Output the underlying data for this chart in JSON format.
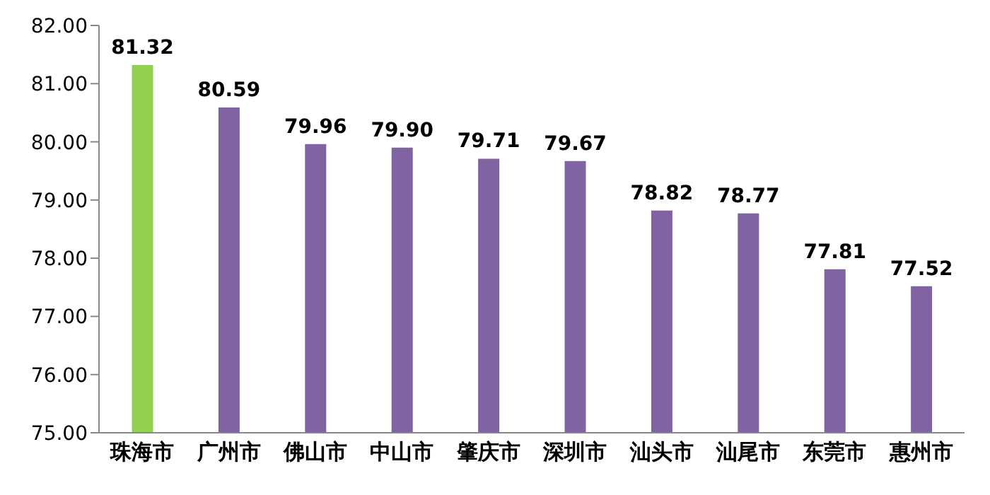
{
  "chart_data": {
    "type": "bar",
    "categories": [
      "珠海市",
      "广州市",
      "佛山市",
      "中山市",
      "肇庆市",
      "深圳市",
      "汕头市",
      "汕尾市",
      "东莞市",
      "惠州市"
    ],
    "values": [
      81.32,
      80.59,
      79.96,
      79.9,
      79.71,
      79.67,
      78.82,
      78.77,
      77.81,
      77.52
    ],
    "colors": [
      "#92d050",
      "#8064a2",
      "#8064a2",
      "#8064a2",
      "#8064a2",
      "#8064a2",
      "#8064a2",
      "#8064a2",
      "#8064a2",
      "#8064a2"
    ],
    "value_labels": [
      "81.32",
      "80.59",
      "79.96",
      "79.90",
      "79.71",
      "79.67",
      "78.82",
      "78.77",
      "77.81",
      "77.52"
    ],
    "ylim": [
      75,
      82
    ],
    "yticks": [
      {
        "value": 75,
        "label": "75.00"
      },
      {
        "value": 76,
        "label": "76.00"
      },
      {
        "value": 77,
        "label": "77.00"
      },
      {
        "value": 78,
        "label": "78.00"
      },
      {
        "value": 79,
        "label": "79.00"
      },
      {
        "value": 80,
        "label": "80.00"
      },
      {
        "value": 81,
        "label": "81.00"
      },
      {
        "value": 82,
        "label": "82.00"
      }
    ],
    "grid": false,
    "legend": false
  }
}
